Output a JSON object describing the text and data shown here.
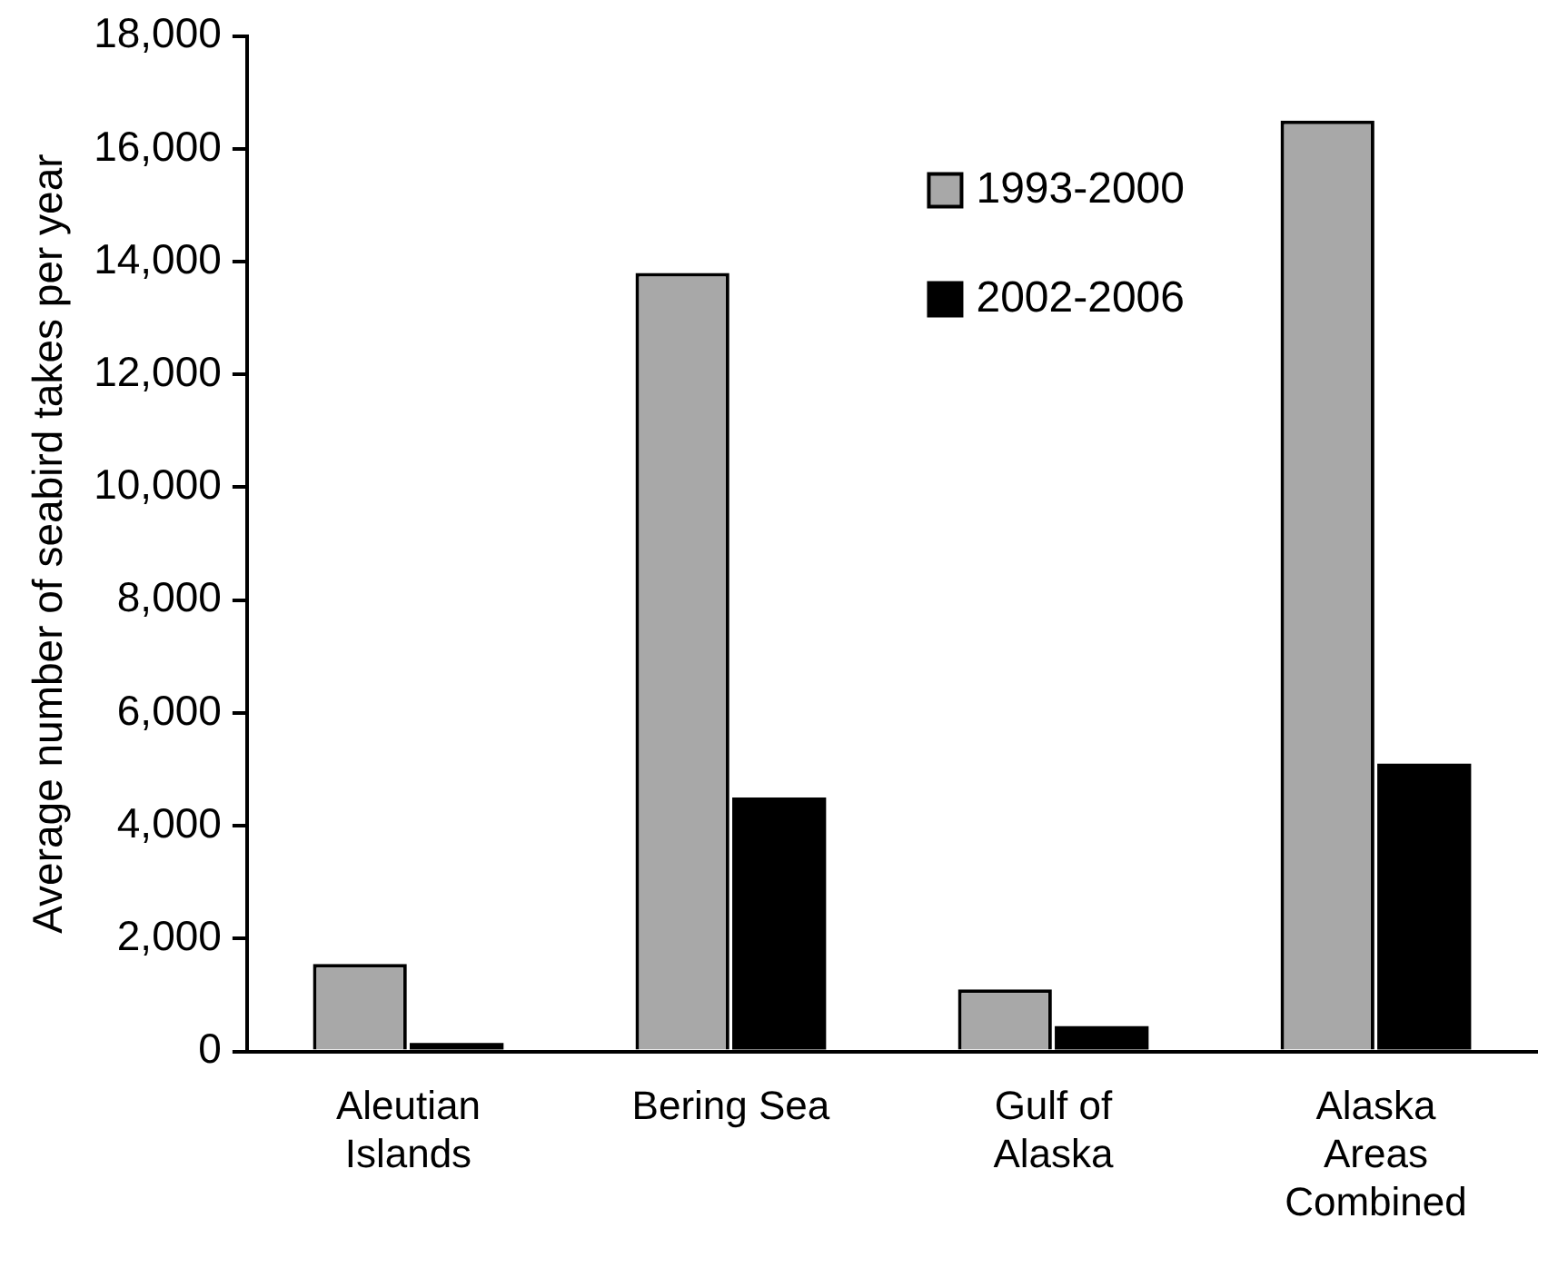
{
  "chart_data": {
    "type": "bar",
    "ylabel": "Average number of seabird takes per year",
    "categories": [
      "Aleutian Islands",
      "Bering Sea",
      "Gulf of Alaska",
      "Alaska Areas Combined"
    ],
    "series": [
      {
        "name": "1993-2000",
        "color": "#a8a8a8",
        "values": [
          1550,
          13800,
          1100,
          16500
        ]
      },
      {
        "name": "2002-2006",
        "color": "#000000",
        "values": [
          150,
          4500,
          450,
          5100
        ]
      }
    ],
    "ylim": [
      0,
      18000
    ],
    "yticks": [
      0,
      {
        "value": 2000,
        "label": "2,000"
      },
      {
        "value": 4000,
        "label": "4,000"
      },
      {
        "value": 6000,
        "label": "6,000"
      },
      {
        "value": 8000,
        "label": "8,000"
      },
      {
        "value": 10000,
        "label": "10,000"
      },
      {
        "value": 12000,
        "label": "12,000"
      },
      {
        "value": 14000,
        "label": "14,000"
      },
      {
        "value": 16000,
        "label": "16,000"
      },
      {
        "value": 18000,
        "label": "18,000"
      }
    ],
    "grid": false,
    "legend": "top right"
  }
}
